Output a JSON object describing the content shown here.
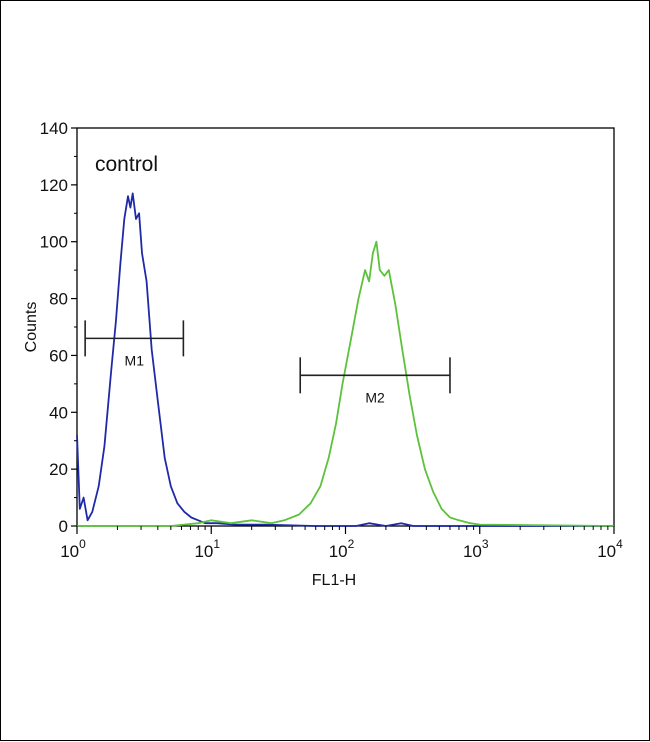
{
  "chart_data": {
    "type": "line",
    "title": "",
    "xlabel": "FL1-H",
    "ylabel": "Counts",
    "x_scale": "log",
    "xlim": [
      1,
      10000
    ],
    "ylim": [
      0,
      140
    ],
    "y_ticks": [
      0,
      20,
      40,
      60,
      80,
      100,
      120,
      140
    ],
    "x_ticks": [
      {
        "base": "10",
        "exp": "0",
        "value": 1
      },
      {
        "base": "10",
        "exp": "1",
        "value": 10
      },
      {
        "base": "10",
        "exp": "2",
        "value": 100
      },
      {
        "base": "10",
        "exp": "3",
        "value": 1000
      },
      {
        "base": "10",
        "exp": "4",
        "value": 10000
      }
    ],
    "grid": false,
    "annotation": "control",
    "series": [
      {
        "color": "#1f2aa8",
        "points": [
          [
            1.0,
            32
          ],
          [
            1.05,
            6
          ],
          [
            1.12,
            10
          ],
          [
            1.2,
            2
          ],
          [
            1.3,
            5
          ],
          [
            1.45,
            14
          ],
          [
            1.6,
            28
          ],
          [
            1.8,
            55
          ],
          [
            1.95,
            72
          ],
          [
            2.1,
            92
          ],
          [
            2.25,
            108
          ],
          [
            2.4,
            116
          ],
          [
            2.5,
            112
          ],
          [
            2.6,
            117
          ],
          [
            2.75,
            108
          ],
          [
            2.9,
            110
          ],
          [
            3.05,
            96
          ],
          [
            3.3,
            86
          ],
          [
            3.6,
            62
          ],
          [
            4.0,
            44
          ],
          [
            4.5,
            24
          ],
          [
            5.0,
            14
          ],
          [
            5.6,
            8
          ],
          [
            6.3,
            5
          ],
          [
            7.1,
            3
          ],
          [
            8.0,
            2
          ],
          [
            9.0,
            1
          ],
          [
            11,
            1
          ],
          [
            15,
            0.5
          ],
          [
            25,
            0.5
          ],
          [
            60,
            0
          ],
          [
            120,
            0
          ],
          [
            150,
            1
          ],
          [
            200,
            0
          ],
          [
            260,
            1
          ],
          [
            320,
            0
          ],
          [
            10000,
            0
          ]
        ]
      },
      {
        "color": "#5cc23c",
        "points": [
          [
            1.0,
            0
          ],
          [
            5.0,
            0
          ],
          [
            8,
            1
          ],
          [
            10,
            2
          ],
          [
            14,
            1
          ],
          [
            20,
            2
          ],
          [
            28,
            1
          ],
          [
            35,
            2
          ],
          [
            45,
            4
          ],
          [
            55,
            8
          ],
          [
            65,
            14
          ],
          [
            75,
            24
          ],
          [
            85,
            36
          ],
          [
            95,
            50
          ],
          [
            110,
            66
          ],
          [
            125,
            80
          ],
          [
            140,
            90
          ],
          [
            150,
            86
          ],
          [
            160,
            96
          ],
          [
            170,
            100
          ],
          [
            180,
            90
          ],
          [
            195,
            88
          ],
          [
            210,
            90
          ],
          [
            235,
            78
          ],
          [
            265,
            62
          ],
          [
            300,
            46
          ],
          [
            340,
            32
          ],
          [
            390,
            20
          ],
          [
            450,
            12
          ],
          [
            520,
            6
          ],
          [
            600,
            3
          ],
          [
            700,
            2
          ],
          [
            850,
            1
          ],
          [
            1000,
            0.5
          ],
          [
            10000,
            0
          ]
        ]
      }
    ],
    "gates": [
      {
        "label": "M1",
        "x_start": 1.15,
        "x_end": 6.2,
        "level": 66
      },
      {
        "label": "M2",
        "x_start": 46,
        "x_end": 600,
        "level": 53
      }
    ]
  }
}
